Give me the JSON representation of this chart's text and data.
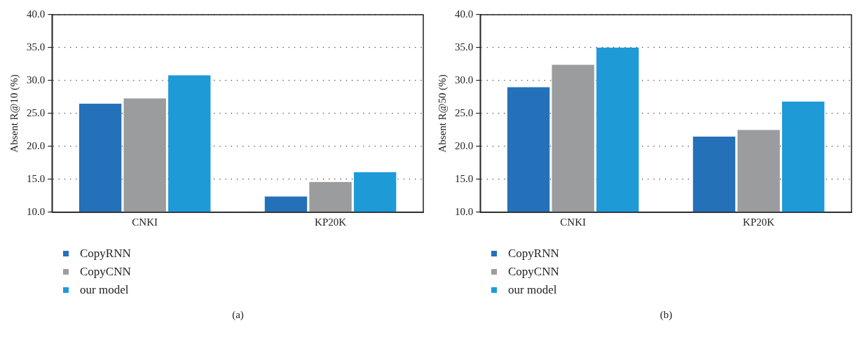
{
  "chart_data": [
    {
      "type": "bar",
      "categories": [
        "CNKI",
        "KP20K"
      ],
      "ylabel": "Absent R@10 (%)",
      "ylim": [
        10,
        40
      ],
      "yticks": [
        {
          "value": 10,
          "label": "10.0"
        },
        {
          "value": 15,
          "label": "15.0"
        },
        {
          "value": 20,
          "label": "20.0"
        },
        {
          "value": 25,
          "label": "25.0"
        },
        {
          "value": 30,
          "label": "30.0"
        },
        {
          "value": 35,
          "label": "35.0"
        },
        {
          "value": 40,
          "label": "40.0"
        }
      ],
      "grid": "y",
      "legend": "bottom left",
      "annotations": [
        "(a)"
      ],
      "series": [
        {
          "name": "CopyRNN",
          "color": "#2471b9",
          "values": [
            26.5,
            12.4
          ]
        },
        {
          "name": "CopyCNN",
          "color": "#9b9c9e",
          "values": [
            27.3,
            14.6
          ]
        },
        {
          "name": "our model",
          "color": "#1e9ad7",
          "values": [
            30.8,
            16.1
          ]
        }
      ]
    },
    {
      "type": "bar",
      "categories": [
        "CNKI",
        "KP20K"
      ],
      "ylabel": "Absent R@50 (%)",
      "ylim": [
        10,
        40
      ],
      "yticks": [
        {
          "value": 10,
          "label": "10.0"
        },
        {
          "value": 15,
          "label": "15.0"
        },
        {
          "value": 20,
          "label": "20.0"
        },
        {
          "value": 25,
          "label": "25.0"
        },
        {
          "value": 30,
          "label": "30.0"
        },
        {
          "value": 35,
          "label": "35.0"
        },
        {
          "value": 40,
          "label": "40.0"
        }
      ],
      "grid": "y",
      "legend": "bottom left",
      "annotations": [
        "(b)"
      ],
      "series": [
        {
          "name": "CopyRNN",
          "color": "#2471b9",
          "values": [
            29.0,
            21.5
          ]
        },
        {
          "name": "CopyCNN",
          "color": "#9b9c9e",
          "values": [
            32.4,
            22.5
          ]
        },
        {
          "name": "our model",
          "color": "#1e9ad7",
          "values": [
            35.0,
            26.8
          ]
        }
      ]
    }
  ]
}
